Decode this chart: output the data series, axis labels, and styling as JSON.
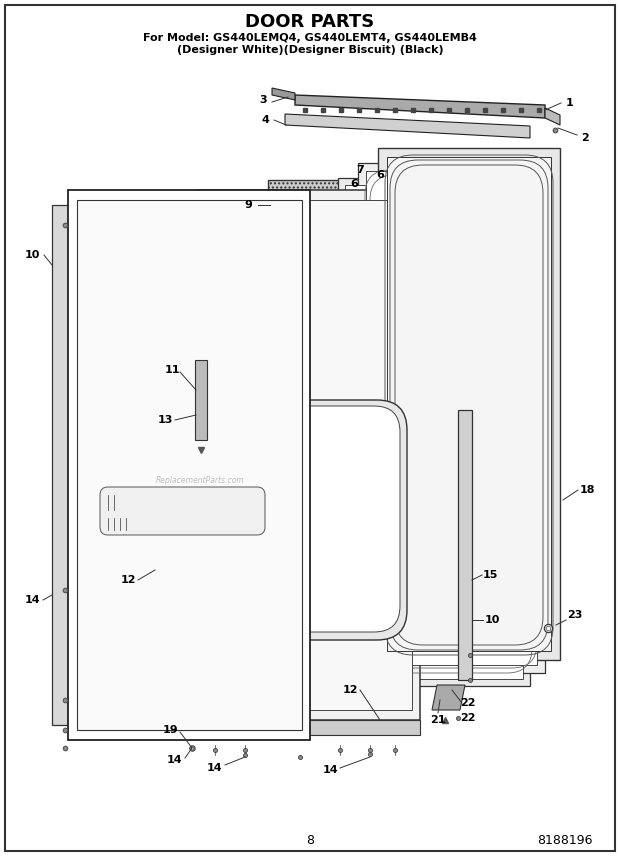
{
  "title": "DOOR PARTS",
  "subtitle_line1": "For Model: GS440LEMQ4, GS440LEMT4, GS440LEMB4",
  "subtitle_line2": "(Designer White)(Designer Biscuit) (Black)",
  "page_number": "8",
  "part_number": "8188196",
  "bg": "#ffffff",
  "title_fs": 13,
  "sub_fs": 8,
  "footer_fs": 9,
  "label_fs": 8
}
